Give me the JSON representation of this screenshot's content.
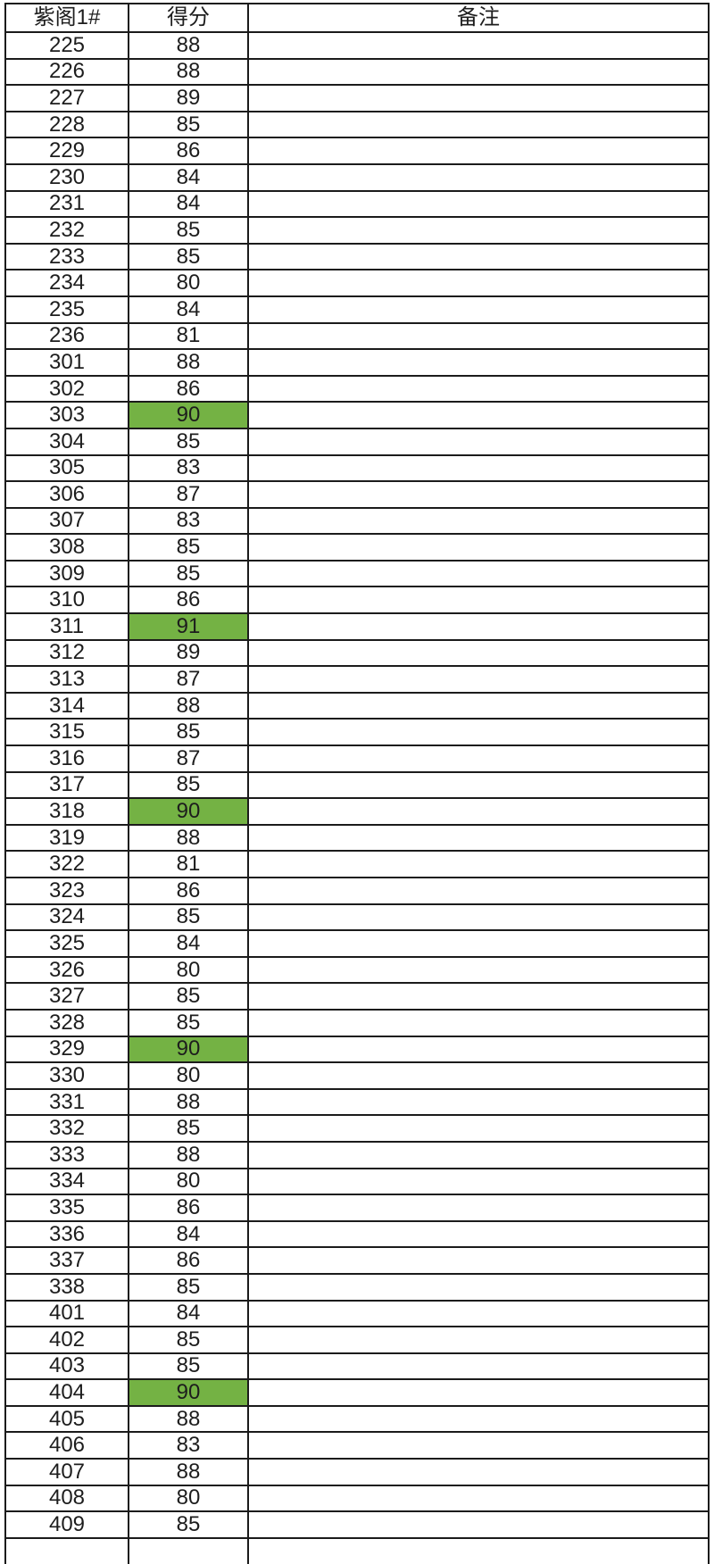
{
  "table": {
    "headers": [
      "紫阁1#",
      "得分",
      "备注"
    ],
    "highlight_color": "#74b244",
    "rows": [
      {
        "room": "225",
        "score": "88",
        "note": "",
        "highlight": false
      },
      {
        "room": "226",
        "score": "88",
        "note": "",
        "highlight": false
      },
      {
        "room": "227",
        "score": "89",
        "note": "",
        "highlight": false
      },
      {
        "room": "228",
        "score": "85",
        "note": "",
        "highlight": false
      },
      {
        "room": "229",
        "score": "86",
        "note": "",
        "highlight": false
      },
      {
        "room": "230",
        "score": "84",
        "note": "",
        "highlight": false
      },
      {
        "room": "231",
        "score": "84",
        "note": "",
        "highlight": false
      },
      {
        "room": "232",
        "score": "85",
        "note": "",
        "highlight": false
      },
      {
        "room": "233",
        "score": "85",
        "note": "",
        "highlight": false
      },
      {
        "room": "234",
        "score": "80",
        "note": "",
        "highlight": false
      },
      {
        "room": "235",
        "score": "84",
        "note": "",
        "highlight": false
      },
      {
        "room": "236",
        "score": "81",
        "note": "",
        "highlight": false
      },
      {
        "room": "301",
        "score": "88",
        "note": "",
        "highlight": false
      },
      {
        "room": "302",
        "score": "86",
        "note": "",
        "highlight": false
      },
      {
        "room": "303",
        "score": "90",
        "note": "",
        "highlight": true
      },
      {
        "room": "304",
        "score": "85",
        "note": "",
        "highlight": false
      },
      {
        "room": "305",
        "score": "83",
        "note": "",
        "highlight": false
      },
      {
        "room": "306",
        "score": "87",
        "note": "",
        "highlight": false
      },
      {
        "room": "307",
        "score": "83",
        "note": "",
        "highlight": false
      },
      {
        "room": "308",
        "score": "85",
        "note": "",
        "highlight": false
      },
      {
        "room": "309",
        "score": "85",
        "note": "",
        "highlight": false
      },
      {
        "room": "310",
        "score": "86",
        "note": "",
        "highlight": false
      },
      {
        "room": "311",
        "score": "91",
        "note": "",
        "highlight": true
      },
      {
        "room": "312",
        "score": "89",
        "note": "",
        "highlight": false
      },
      {
        "room": "313",
        "score": "87",
        "note": "",
        "highlight": false
      },
      {
        "room": "314",
        "score": "88",
        "note": "",
        "highlight": false
      },
      {
        "room": "315",
        "score": "85",
        "note": "",
        "highlight": false
      },
      {
        "room": "316",
        "score": "87",
        "note": "",
        "highlight": false
      },
      {
        "room": "317",
        "score": "85",
        "note": "",
        "highlight": false
      },
      {
        "room": "318",
        "score": "90",
        "note": "",
        "highlight": true
      },
      {
        "room": "319",
        "score": "88",
        "note": "",
        "highlight": false
      },
      {
        "room": "322",
        "score": "81",
        "note": "",
        "highlight": false
      },
      {
        "room": "323",
        "score": "86",
        "note": "",
        "highlight": false
      },
      {
        "room": "324",
        "score": "85",
        "note": "",
        "highlight": false
      },
      {
        "room": "325",
        "score": "84",
        "note": "",
        "highlight": false
      },
      {
        "room": "326",
        "score": "80",
        "note": "",
        "highlight": false
      },
      {
        "room": "327",
        "score": "85",
        "note": "",
        "highlight": false
      },
      {
        "room": "328",
        "score": "85",
        "note": "",
        "highlight": false
      },
      {
        "room": "329",
        "score": "90",
        "note": "",
        "highlight": true
      },
      {
        "room": "330",
        "score": "80",
        "note": "",
        "highlight": false
      },
      {
        "room": "331",
        "score": "88",
        "note": "",
        "highlight": false
      },
      {
        "room": "332",
        "score": "85",
        "note": "",
        "highlight": false
      },
      {
        "room": "333",
        "score": "88",
        "note": "",
        "highlight": false
      },
      {
        "room": "334",
        "score": "80",
        "note": "",
        "highlight": false
      },
      {
        "room": "335",
        "score": "86",
        "note": "",
        "highlight": false
      },
      {
        "room": "336",
        "score": "84",
        "note": "",
        "highlight": false
      },
      {
        "room": "337",
        "score": "86",
        "note": "",
        "highlight": false
      },
      {
        "room": "338",
        "score": "85",
        "note": "",
        "highlight": false
      },
      {
        "room": "401",
        "score": "84",
        "note": "",
        "highlight": false
      },
      {
        "room": "402",
        "score": "85",
        "note": "",
        "highlight": false
      },
      {
        "room": "403",
        "score": "85",
        "note": "",
        "highlight": false
      },
      {
        "room": "404",
        "score": "90",
        "note": "",
        "highlight": true
      },
      {
        "room": "405",
        "score": "88",
        "note": "",
        "highlight": false
      },
      {
        "room": "406",
        "score": "83",
        "note": "",
        "highlight": false
      },
      {
        "room": "407",
        "score": "88",
        "note": "",
        "highlight": false
      },
      {
        "room": "408",
        "score": "80",
        "note": "",
        "highlight": false
      },
      {
        "room": "409",
        "score": "85",
        "note": "",
        "highlight": false
      }
    ]
  }
}
